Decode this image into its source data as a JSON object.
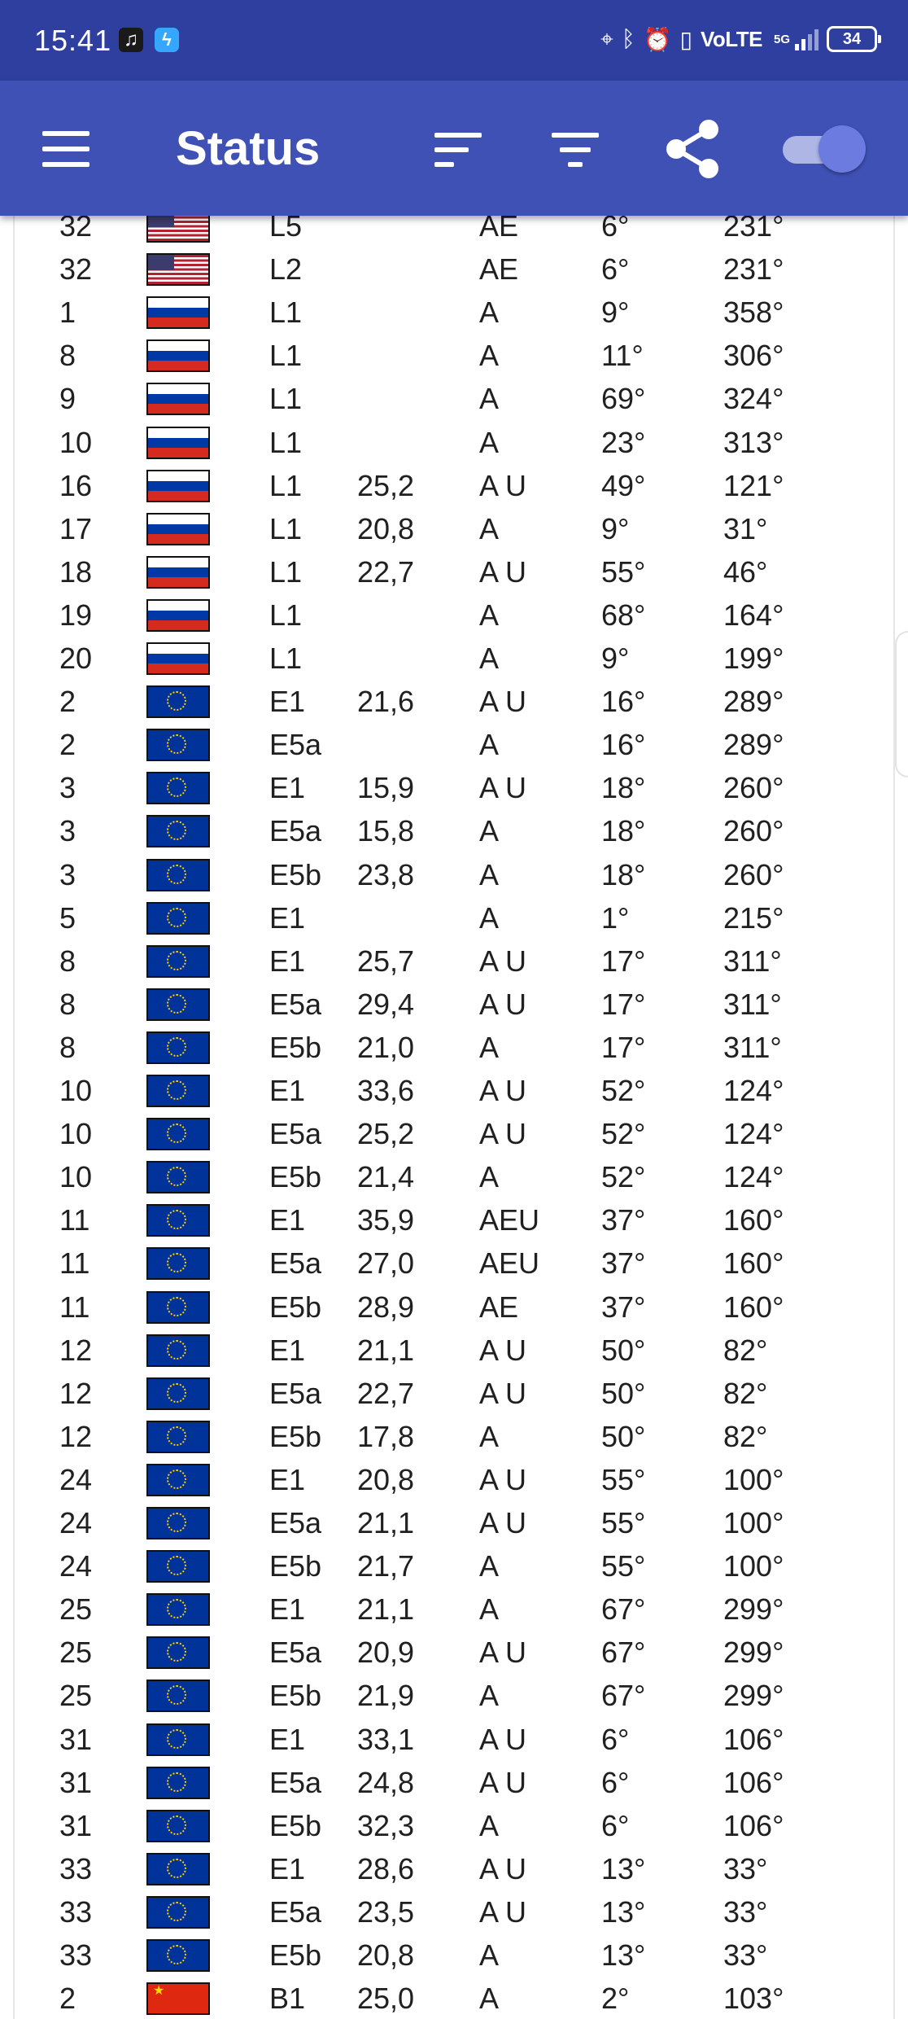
{
  "status_bar": {
    "time": "15:41",
    "network": "VoLTE",
    "network_gen": "5G",
    "battery": "34"
  },
  "appbar": {
    "title": "Status"
  },
  "satellites": [
    {
      "prn": "32",
      "flag": "us",
      "signal": "L5",
      "snr": "",
      "flags": "AE",
      "elevation": "6°",
      "azimuth": "231°"
    },
    {
      "prn": "32",
      "flag": "us",
      "signal": "L2",
      "snr": "",
      "flags": "AE",
      "elevation": "6°",
      "azimuth": "231°"
    },
    {
      "prn": "1",
      "flag": "ru",
      "signal": "L1",
      "snr": "",
      "flags": "A",
      "elevation": "9°",
      "azimuth": "358°"
    },
    {
      "prn": "8",
      "flag": "ru",
      "signal": "L1",
      "snr": "",
      "flags": "A",
      "elevation": "11°",
      "azimuth": "306°"
    },
    {
      "prn": "9",
      "flag": "ru",
      "signal": "L1",
      "snr": "",
      "flags": "A",
      "elevation": "69°",
      "azimuth": "324°"
    },
    {
      "prn": "10",
      "flag": "ru",
      "signal": "L1",
      "snr": "",
      "flags": "A",
      "elevation": "23°",
      "azimuth": "313°"
    },
    {
      "prn": "16",
      "flag": "ru",
      "signal": "L1",
      "snr": "25,2",
      "flags": "A U",
      "elevation": "49°",
      "azimuth": "121°"
    },
    {
      "prn": "17",
      "flag": "ru",
      "signal": "L1",
      "snr": "20,8",
      "flags": "A",
      "elevation": "9°",
      "azimuth": "31°"
    },
    {
      "prn": "18",
      "flag": "ru",
      "signal": "L1",
      "snr": "22,7",
      "flags": "A U",
      "elevation": "55°",
      "azimuth": "46°"
    },
    {
      "prn": "19",
      "flag": "ru",
      "signal": "L1",
      "snr": "",
      "flags": "A",
      "elevation": "68°",
      "azimuth": "164°"
    },
    {
      "prn": "20",
      "flag": "ru",
      "signal": "L1",
      "snr": "",
      "flags": "A",
      "elevation": "9°",
      "azimuth": "199°"
    },
    {
      "prn": "2",
      "flag": "eu",
      "signal": "E1",
      "snr": "21,6",
      "flags": "A U",
      "elevation": "16°",
      "azimuth": "289°"
    },
    {
      "prn": "2",
      "flag": "eu",
      "signal": "E5a",
      "snr": "",
      "flags": "A",
      "elevation": "16°",
      "azimuth": "289°"
    },
    {
      "prn": "3",
      "flag": "eu",
      "signal": "E1",
      "snr": "15,9",
      "flags": "A U",
      "elevation": "18°",
      "azimuth": "260°"
    },
    {
      "prn": "3",
      "flag": "eu",
      "signal": "E5a",
      "snr": "15,8",
      "flags": "A",
      "elevation": "18°",
      "azimuth": "260°"
    },
    {
      "prn": "3",
      "flag": "eu",
      "signal": "E5b",
      "snr": "23,8",
      "flags": "A",
      "elevation": "18°",
      "azimuth": "260°"
    },
    {
      "prn": "5",
      "flag": "eu",
      "signal": "E1",
      "snr": "",
      "flags": "A",
      "elevation": "1°",
      "azimuth": "215°"
    },
    {
      "prn": "8",
      "flag": "eu",
      "signal": "E1",
      "snr": "25,7",
      "flags": "A U",
      "elevation": "17°",
      "azimuth": "311°"
    },
    {
      "prn": "8",
      "flag": "eu",
      "signal": "E5a",
      "snr": "29,4",
      "flags": "A U",
      "elevation": "17°",
      "azimuth": "311°"
    },
    {
      "prn": "8",
      "flag": "eu",
      "signal": "E5b",
      "snr": "21,0",
      "flags": "A",
      "elevation": "17°",
      "azimuth": "311°"
    },
    {
      "prn": "10",
      "flag": "eu",
      "signal": "E1",
      "snr": "33,6",
      "flags": "A U",
      "elevation": "52°",
      "azimuth": "124°"
    },
    {
      "prn": "10",
      "flag": "eu",
      "signal": "E5a",
      "snr": "25,2",
      "flags": "A U",
      "elevation": "52°",
      "azimuth": "124°"
    },
    {
      "prn": "10",
      "flag": "eu",
      "signal": "E5b",
      "snr": "21,4",
      "flags": "A",
      "elevation": "52°",
      "azimuth": "124°"
    },
    {
      "prn": "11",
      "flag": "eu",
      "signal": "E1",
      "snr": "35,9",
      "flags": "AEU",
      "elevation": "37°",
      "azimuth": "160°"
    },
    {
      "prn": "11",
      "flag": "eu",
      "signal": "E5a",
      "snr": "27,0",
      "flags": "AEU",
      "elevation": "37°",
      "azimuth": "160°"
    },
    {
      "prn": "11",
      "flag": "eu",
      "signal": "E5b",
      "snr": "28,9",
      "flags": "AE",
      "elevation": "37°",
      "azimuth": "160°"
    },
    {
      "prn": "12",
      "flag": "eu",
      "signal": "E1",
      "snr": "21,1",
      "flags": "A U",
      "elevation": "50°",
      "azimuth": "82°"
    },
    {
      "prn": "12",
      "flag": "eu",
      "signal": "E5a",
      "snr": "22,7",
      "flags": "A U",
      "elevation": "50°",
      "azimuth": "82°"
    },
    {
      "prn": "12",
      "flag": "eu",
      "signal": "E5b",
      "snr": "17,8",
      "flags": "A",
      "elevation": "50°",
      "azimuth": "82°"
    },
    {
      "prn": "24",
      "flag": "eu",
      "signal": "E1",
      "snr": "20,8",
      "flags": "A U",
      "elevation": "55°",
      "azimuth": "100°"
    },
    {
      "prn": "24",
      "flag": "eu",
      "signal": "E5a",
      "snr": "21,1",
      "flags": "A U",
      "elevation": "55°",
      "azimuth": "100°"
    },
    {
      "prn": "24",
      "flag": "eu",
      "signal": "E5b",
      "snr": "21,7",
      "flags": "A",
      "elevation": "55°",
      "azimuth": "100°"
    },
    {
      "prn": "25",
      "flag": "eu",
      "signal": "E1",
      "snr": "21,1",
      "flags": "A",
      "elevation": "67°",
      "azimuth": "299°"
    },
    {
      "prn": "25",
      "flag": "eu",
      "signal": "E5a",
      "snr": "20,9",
      "flags": "A U",
      "elevation": "67°",
      "azimuth": "299°"
    },
    {
      "prn": "25",
      "flag": "eu",
      "signal": "E5b",
      "snr": "21,9",
      "flags": "A",
      "elevation": "67°",
      "azimuth": "299°"
    },
    {
      "prn": "31",
      "flag": "eu",
      "signal": "E1",
      "snr": "33,1",
      "flags": "A U",
      "elevation": "6°",
      "azimuth": "106°"
    },
    {
      "prn": "31",
      "flag": "eu",
      "signal": "E5a",
      "snr": "24,8",
      "flags": "A U",
      "elevation": "6°",
      "azimuth": "106°"
    },
    {
      "prn": "31",
      "flag": "eu",
      "signal": "E5b",
      "snr": "32,3",
      "flags": "A",
      "elevation": "6°",
      "azimuth": "106°"
    },
    {
      "prn": "33",
      "flag": "eu",
      "signal": "E1",
      "snr": "28,6",
      "flags": "A U",
      "elevation": "13°",
      "azimuth": "33°"
    },
    {
      "prn": "33",
      "flag": "eu",
      "signal": "E5a",
      "snr": "23,5",
      "flags": "A U",
      "elevation": "13°",
      "azimuth": "33°"
    },
    {
      "prn": "33",
      "flag": "eu",
      "signal": "E5b",
      "snr": "20,8",
      "flags": "A",
      "elevation": "13°",
      "azimuth": "33°"
    },
    {
      "prn": "2",
      "flag": "cn",
      "signal": "B1",
      "snr": "25,0",
      "flags": "A",
      "elevation": "2°",
      "azimuth": "103°"
    }
  ]
}
